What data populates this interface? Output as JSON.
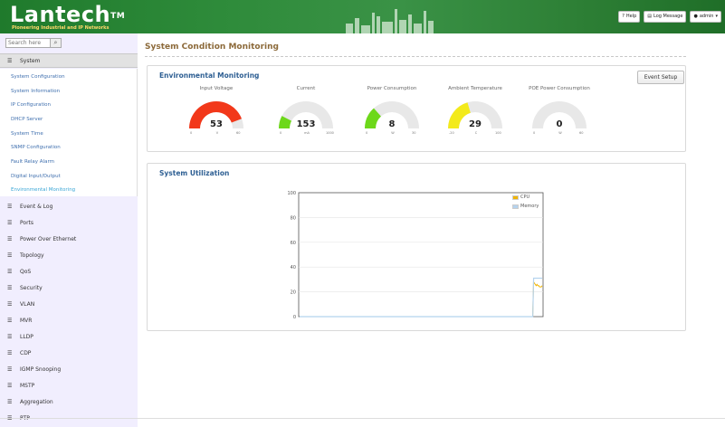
{
  "header": {
    "brand": "Lantech",
    "tm": "TM",
    "tagline": "Pioneering Industrial and IP Networks",
    "help": "Help",
    "log_message": "Log Message",
    "user": "admin"
  },
  "sidebar": {
    "search_placeholder": "Search here",
    "system_label": "System",
    "submenu": [
      "System Configuration",
      "System Information",
      "IP Configuration",
      "DHCP Server",
      "System Time",
      "SNMP Configuration",
      "Fault Relay Alarm",
      "Digital Input/Output",
      "Environmental Monitoring"
    ],
    "items": [
      "Event & Log",
      "Ports",
      "Power Over Ethernet",
      "Topology",
      "QoS",
      "Security",
      "VLAN",
      "MVR",
      "LLDP",
      "CDP",
      "IGMP Snooping",
      "MSTP",
      "Aggregation",
      "PTP"
    ]
  },
  "main": {
    "title": "System Condition Monitoring",
    "env": {
      "title": "Environmental Monitoring",
      "event_setup": "Event Setup",
      "gauges": [
        {
          "label": "Input Voltage",
          "value": "53",
          "min": "0",
          "max": "60",
          "unit": "V",
          "fraction": 0.883,
          "color": "#f2381a"
        },
        {
          "label": "Current",
          "value": "153",
          "min": "0",
          "max": "1000",
          "unit": "mA",
          "fraction": 0.153,
          "color": "#6dd81a"
        },
        {
          "label": "Power Consumption",
          "value": "8",
          "min": "0",
          "max": "30",
          "unit": "W",
          "fraction": 0.267,
          "color": "#6dd81a"
        },
        {
          "label": "Ambient Temperature",
          "value": "29",
          "min": "-20",
          "max": "100",
          "unit": "C",
          "fraction": 0.408,
          "color": "#f3ea1b"
        },
        {
          "label": "POE Power Consumption",
          "value": "0",
          "min": "0",
          "max": "60",
          "unit": "W",
          "fraction": 0,
          "color": "#6dd81a"
        }
      ]
    },
    "util": {
      "title": "System Utilization"
    }
  },
  "chart_data": {
    "type": "line",
    "title": "",
    "xlabel": "",
    "ylabel": "",
    "ylim": [
      0,
      100
    ],
    "yticks": [
      "100",
      "80",
      "60",
      "40",
      "20",
      "0"
    ],
    "legend_position": "top-right",
    "series": [
      {
        "name": "CPU",
        "color": "#f0b400",
        "values": [
          0,
          0,
          0,
          0,
          0,
          0,
          0,
          0,
          0,
          0,
          0,
          0,
          0,
          0,
          0,
          0,
          0,
          0,
          0,
          0,
          0,
          0,
          0,
          0,
          0,
          0,
          0,
          0,
          0,
          0,
          0,
          0,
          0,
          0,
          0,
          0,
          0,
          0,
          0,
          0,
          0,
          0,
          0,
          0,
          0,
          0,
          0,
          0,
          0,
          0,
          0,
          0,
          0,
          0,
          0,
          0,
          0,
          0,
          0,
          0,
          0,
          0,
          0,
          0,
          0,
          0,
          0,
          0,
          0,
          0,
          0,
          0,
          0,
          0,
          0,
          0,
          0,
          0,
          0,
          0,
          0,
          0,
          0,
          0,
          0,
          0,
          0,
          0,
          0,
          0,
          0,
          0,
          0,
          0,
          0,
          0,
          0,
          0,
          0,
          0,
          0,
          0,
          0,
          0,
          0,
          0,
          0,
          0,
          0,
          0,
          0,
          0,
          0,
          0,
          0,
          0,
          0,
          0,
          0,
          0,
          0,
          0,
          0,
          0,
          0,
          0,
          0,
          0,
          0,
          0,
          0,
          0,
          0,
          0,
          0,
          0,
          0,
          0,
          0,
          0,
          0,
          0,
          0,
          0,
          0,
          0,
          0,
          0,
          0,
          0,
          0,
          0,
          0,
          0,
          0,
          0,
          0,
          0,
          0,
          0,
          0,
          0,
          0,
          0,
          0,
          0,
          0,
          0,
          0,
          0,
          0,
          0,
          0,
          0,
          0,
          0,
          0,
          0,
          0,
          0,
          0,
          0,
          0,
          0,
          0,
          0,
          0,
          0,
          0,
          0,
          0,
          0,
          0,
          0,
          0,
          0,
          0,
          0,
          0,
          0,
          0,
          0,
          0,
          0,
          0,
          0,
          0,
          0,
          0,
          0,
          0,
          0,
          0,
          0,
          0,
          0,
          0,
          0,
          0,
          0,
          0,
          0,
          0,
          0,
          0,
          0,
          0,
          0,
          0,
          0,
          0,
          0,
          0,
          0,
          0,
          0,
          0,
          0,
          0,
          0,
          0,
          0,
          0,
          0,
          0,
          0,
          0,
          0,
          0,
          0,
          0,
          0,
          0,
          0,
          0,
          0,
          0,
          0,
          0,
          0,
          0,
          0,
          0,
          0,
          0,
          0,
          0,
          0,
          0,
          0,
          0,
          0,
          28,
          27,
          26,
          25,
          26,
          25,
          25,
          24,
          24,
          24,
          25
        ]
      },
      {
        "name": "Memory",
        "color": "#b5d3ee",
        "values": [
          0,
          0,
          0,
          0,
          0,
          0,
          0,
          0,
          0,
          0,
          0,
          0,
          0,
          0,
          0,
          0,
          0,
          0,
          0,
          0,
          0,
          0,
          0,
          0,
          0,
          0,
          0,
          0,
          0,
          0,
          0,
          0,
          0,
          0,
          0,
          0,
          0,
          0,
          0,
          0,
          0,
          0,
          0,
          0,
          0,
          0,
          0,
          0,
          0,
          0,
          0,
          0,
          0,
          0,
          0,
          0,
          0,
          0,
          0,
          0,
          0,
          0,
          0,
          0,
          0,
          0,
          0,
          0,
          0,
          0,
          0,
          0,
          0,
          0,
          0,
          0,
          0,
          0,
          0,
          0,
          0,
          0,
          0,
          0,
          0,
          0,
          0,
          0,
          0,
          0,
          0,
          0,
          0,
          0,
          0,
          0,
          0,
          0,
          0,
          0,
          0,
          0,
          0,
          0,
          0,
          0,
          0,
          0,
          0,
          0,
          0,
          0,
          0,
          0,
          0,
          0,
          0,
          0,
          0,
          0,
          0,
          0,
          0,
          0,
          0,
          0,
          0,
          0,
          0,
          0,
          0,
          0,
          0,
          0,
          0,
          0,
          0,
          0,
          0,
          0,
          0,
          0,
          0,
          0,
          0,
          0,
          0,
          0,
          0,
          0,
          0,
          0,
          0,
          0,
          0,
          0,
          0,
          0,
          0,
          0,
          0,
          0,
          0,
          0,
          0,
          0,
          0,
          0,
          0,
          0,
          0,
          0,
          0,
          0,
          0,
          0,
          0,
          0,
          0,
          0,
          0,
          0,
          0,
          0,
          0,
          0,
          0,
          0,
          0,
          0,
          0,
          0,
          0,
          0,
          0,
          0,
          0,
          0,
          0,
          0,
          0,
          0,
          0,
          0,
          0,
          0,
          0,
          0,
          0,
          0,
          0,
          0,
          0,
          0,
          0,
          0,
          0,
          0,
          0,
          0,
          0,
          0,
          0,
          0,
          0,
          0,
          0,
          0,
          0,
          0,
          0,
          0,
          0,
          0,
          0,
          0,
          0,
          0,
          0,
          0,
          0,
          0,
          0,
          0,
          0,
          0,
          0,
          0,
          0,
          0,
          0,
          0,
          0,
          0,
          0,
          0,
          0,
          0,
          0,
          0,
          0,
          0,
          0,
          0,
          0,
          0,
          0,
          0,
          0,
          0,
          0,
          0,
          0,
          0,
          31,
          31,
          31,
          31,
          31,
          31,
          31,
          31,
          31,
          31,
          31
        ]
      }
    ]
  }
}
